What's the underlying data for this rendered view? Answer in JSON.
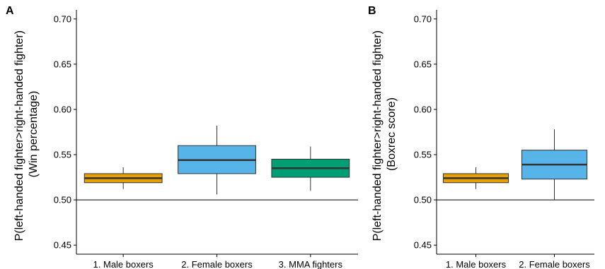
{
  "chart_data": [
    {
      "type": "box",
      "panel_label": "A",
      "ylabel": "P(left-handed fighter>right-handed fighter)\n(Win percentage)",
      "ylim": [
        0.44,
        0.71
      ],
      "yticks": [
        0.45,
        0.5,
        0.55,
        0.6,
        0.65,
        0.7
      ],
      "yticklabels": [
        "0.45",
        "0.50",
        "0.55",
        "0.60",
        "0.65",
        "0.70"
      ],
      "reference_line": 0.5,
      "categories": [
        "1. Male boxers",
        "2. Female boxers",
        "3. MMA fighters"
      ],
      "boxes": [
        {
          "category": "1. Male boxers",
          "whisker_low": 0.512,
          "q1": 0.519,
          "median": 0.524,
          "q3": 0.529,
          "whisker_high": 0.536,
          "color": "#E69F00"
        },
        {
          "category": "2. Female boxers",
          "whisker_low": 0.506,
          "q1": 0.529,
          "median": 0.544,
          "q3": 0.56,
          "whisker_high": 0.582,
          "color": "#56B4E9"
        },
        {
          "category": "3. MMA fighters",
          "whisker_low": 0.51,
          "q1": 0.525,
          "median": 0.535,
          "q3": 0.545,
          "whisker_high": 0.559,
          "color": "#009E73"
        }
      ]
    },
    {
      "type": "box",
      "panel_label": "B",
      "ylabel": "P(left-handed fighter>right-handed fighter)\n(Boxrec score)",
      "ylim": [
        0.44,
        0.71
      ],
      "yticks": [
        0.45,
        0.5,
        0.55,
        0.6,
        0.65,
        0.7
      ],
      "yticklabels": [
        "0.45",
        "0.50",
        "0.55",
        "0.60",
        "0.65",
        "0.70"
      ],
      "reference_line": 0.5,
      "categories": [
        "1. Male boxers",
        "2. Female boxers"
      ],
      "boxes": [
        {
          "category": "1. Male boxers",
          "whisker_low": 0.512,
          "q1": 0.519,
          "median": 0.524,
          "q3": 0.529,
          "whisker_high": 0.536,
          "color": "#E69F00"
        },
        {
          "category": "2. Female boxers",
          "whisker_low": 0.5,
          "q1": 0.523,
          "median": 0.539,
          "q3": 0.555,
          "whisker_high": 0.578,
          "color": "#56B4E9"
        }
      ]
    }
  ]
}
